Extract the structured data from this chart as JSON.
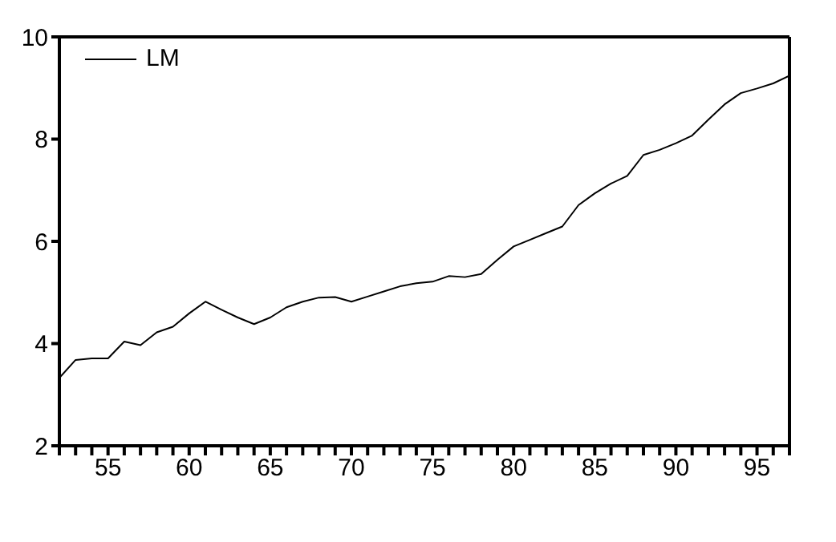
{
  "chart_data": {
    "type": "line",
    "x": [
      52,
      53,
      54,
      55,
      56,
      57,
      58,
      59,
      60,
      61,
      62,
      63,
      64,
      65,
      66,
      67,
      68,
      69,
      70,
      71,
      72,
      73,
      74,
      75,
      76,
      77,
      78,
      79,
      80,
      81,
      82,
      83,
      84,
      85,
      86,
      87,
      88,
      89,
      90,
      91,
      92,
      93,
      94,
      95,
      96,
      97
    ],
    "series": [
      {
        "name": "LM",
        "color": "#000000",
        "values": [
          3.33,
          3.68,
          3.71,
          3.71,
          4.04,
          3.97,
          4.22,
          4.33,
          4.59,
          4.82,
          4.66,
          4.51,
          4.38,
          4.51,
          4.71,
          4.82,
          4.9,
          4.91,
          4.82,
          4.92,
          5.02,
          5.12,
          5.18,
          5.21,
          5.32,
          5.3,
          5.36,
          5.64,
          5.9,
          6.03,
          6.16,
          6.29,
          6.71,
          6.94,
          7.13,
          7.28,
          7.69,
          7.79,
          7.92,
          8.07,
          8.38,
          8.68,
          8.9,
          8.99,
          9.09,
          9.24
        ]
      }
    ],
    "xlim": [
      52,
      97
    ],
    "xticks": [
      {
        "value": 52,
        "label": null
      },
      {
        "value": 53,
        "label": null
      },
      {
        "value": 54,
        "label": null
      },
      55,
      {
        "value": 56,
        "label": null
      },
      {
        "value": 57,
        "label": null
      },
      {
        "value": 58,
        "label": null
      },
      {
        "value": 59,
        "label": null
      },
      60,
      {
        "value": 61,
        "label": null
      },
      {
        "value": 62,
        "label": null
      },
      {
        "value": 63,
        "label": null
      },
      {
        "value": 64,
        "label": null
      },
      65,
      {
        "value": 66,
        "label": null
      },
      {
        "value": 67,
        "label": null
      },
      {
        "value": 68,
        "label": null
      },
      {
        "value": 69,
        "label": null
      },
      70,
      {
        "value": 71,
        "label": null
      },
      {
        "value": 72,
        "label": null
      },
      {
        "value": 73,
        "label": null
      },
      {
        "value": 74,
        "label": null
      },
      75,
      {
        "value": 76,
        "label": null
      },
      {
        "value": 77,
        "label": null
      },
      {
        "value": 78,
        "label": null
      },
      {
        "value": 79,
        "label": null
      },
      80,
      {
        "value": 81,
        "label": null
      },
      {
        "value": 82,
        "label": null
      },
      {
        "value": 83,
        "label": null
      },
      {
        "value": 84,
        "label": null
      },
      85,
      {
        "value": 86,
        "label": null
      },
      {
        "value": 87,
        "label": null
      },
      {
        "value": 88,
        "label": null
      },
      {
        "value": 89,
        "label": null
      },
      90,
      {
        "value": 91,
        "label": null
      },
      {
        "value": 92,
        "label": null
      },
      {
        "value": 93,
        "label": null
      },
      {
        "value": 94,
        "label": null
      },
      95,
      {
        "value": 96,
        "label": null
      },
      {
        "value": 97,
        "label": null
      }
    ],
    "ylim": [
      2,
      10
    ],
    "yticks": [
      2,
      4,
      6,
      8,
      10
    ],
    "grid": false,
    "legend": "top left",
    "marker": "none",
    "line_style": "solid"
  }
}
